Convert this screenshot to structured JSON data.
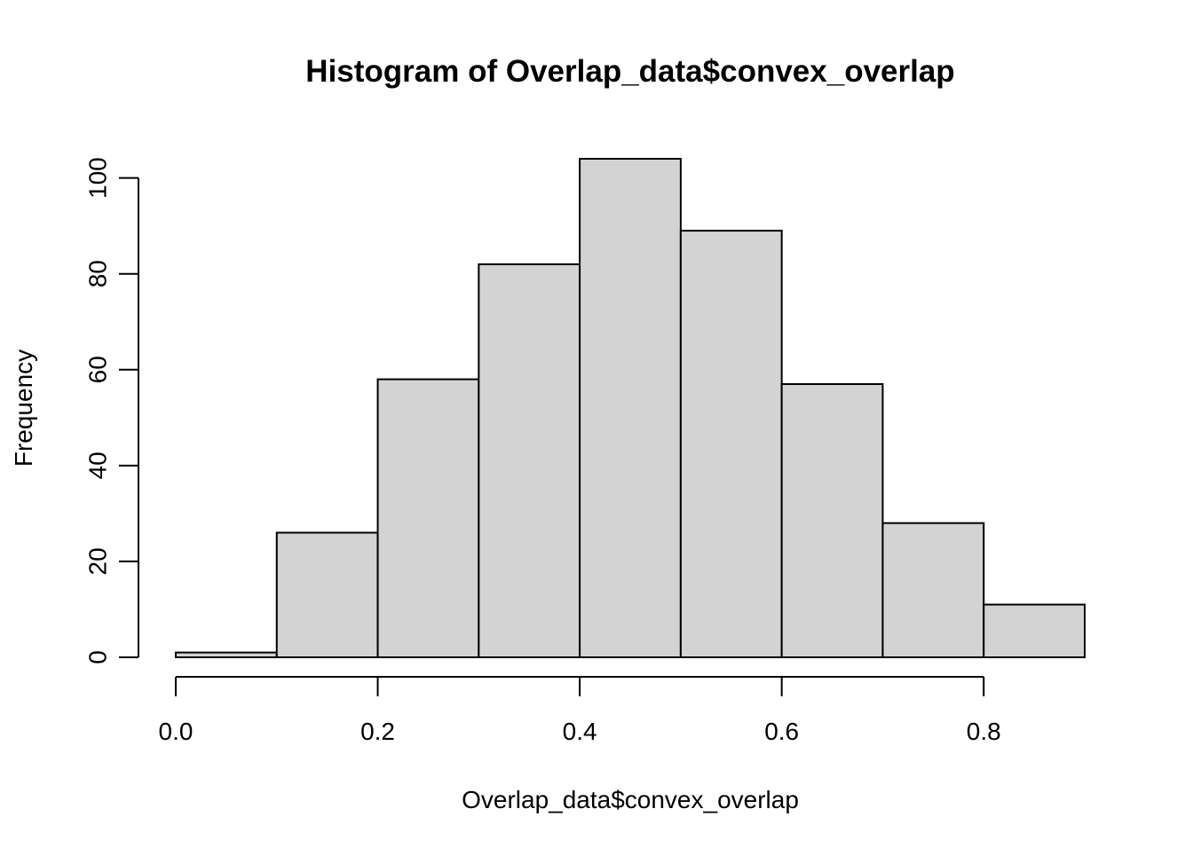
{
  "chart_data": {
    "type": "bar",
    "subtype": "histogram",
    "title": "Histogram of Overlap_data$convex_overlap",
    "xlabel": "Overlap_data$convex_overlap",
    "ylabel": "Frequency",
    "bin_edges": [
      0.0,
      0.1,
      0.2,
      0.3,
      0.4,
      0.5,
      0.6,
      0.7,
      0.8,
      0.9
    ],
    "values": [
      1,
      26,
      58,
      82,
      104,
      89,
      57,
      28,
      11
    ],
    "xlim": [
      0.0,
      0.9
    ],
    "ylim": [
      0,
      104
    ],
    "x_ticks": [
      0.0,
      0.2,
      0.4,
      0.6,
      0.8
    ],
    "x_tick_labels": [
      "0.0",
      "0.2",
      "0.4",
      "0.6",
      "0.8"
    ],
    "y_ticks": [
      0,
      20,
      40,
      60,
      80,
      100
    ],
    "y_tick_labels": [
      "0",
      "20",
      "40",
      "60",
      "80",
      "100"
    ],
    "bar_fill": "#d3d3d3",
    "bar_stroke": "#000000",
    "grid": false,
    "legend": "none"
  }
}
